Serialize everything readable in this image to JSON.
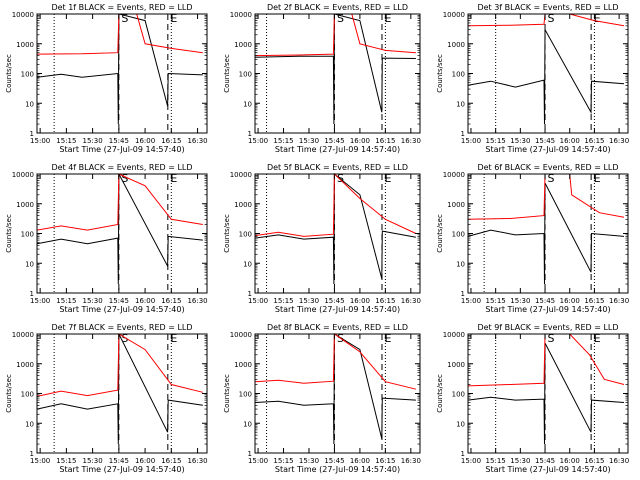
{
  "figure": {
    "ylabel": "Counts/sec",
    "xlabel": "Start Time (27-Jul-09 14:57:40)",
    "x_ticks": [
      "15:00",
      "15:15",
      "15:30",
      "15:45",
      "16:00",
      "16:15",
      "16:30"
    ],
    "y_ticks": [
      "1",
      "10",
      "100",
      "1000",
      "10000"
    ],
    "marker_S": "S",
    "marker_E": "E",
    "colors": {
      "events": "#000000",
      "lld": "#ff0000",
      "frame": "#000000"
    }
  },
  "chart_data": [
    {
      "type": "line",
      "title": "Det 1f BLACK = Events, RED = LLD",
      "xlabel": "Start Time (27-Jul-09 14:57:40)",
      "ylabel": "Counts/sec",
      "ylim": [
        1,
        10000
      ],
      "y_scale": "log",
      "markers": {
        "dotted": [
          "15:08",
          "16:15"
        ],
        "dashed": [
          "15:45",
          "16:13"
        ],
        "S": "15:45",
        "E": "16:13"
      },
      "series": [
        {
          "name": "Events",
          "color": "black",
          "values": [
            [
              14.97,
              75
            ],
            [
              15.2,
              95
            ],
            [
              15.4,
              75
            ],
            [
              15.74,
              100
            ],
            [
              15.745,
              2
            ],
            [
              15.75,
              10000
            ],
            [
              16.0,
              6000
            ],
            [
              16.215,
              8
            ],
            [
              16.22,
              100
            ],
            [
              16.55,
              90
            ]
          ]
        },
        {
          "name": "LLD",
          "color": "red",
          "values": [
            [
              14.97,
              450
            ],
            [
              15.4,
              460
            ],
            [
              15.74,
              500
            ],
            [
              15.75,
              10000
            ],
            [
              15.92,
              10000
            ],
            [
              16.0,
              1000
            ],
            [
              16.25,
              700
            ],
            [
              16.55,
              500
            ]
          ]
        }
      ]
    },
    {
      "type": "line",
      "title": "Det 2f BLACK = Events, RED = LLD",
      "xlabel": "Start Time (27-Jul-09 14:57:40)",
      "ylabel": "Counts/sec",
      "ylim": [
        1,
        10000
      ],
      "y_scale": "log",
      "markers": {
        "dotted": [
          "15:05",
          "16:15"
        ],
        "dashed": [
          "15:45",
          "16:13"
        ],
        "S": "15:45",
        "E": "16:13"
      },
      "series": [
        {
          "name": "Events",
          "color": "black",
          "values": [
            [
              14.97,
              350
            ],
            [
              15.4,
              380
            ],
            [
              15.74,
              380
            ],
            [
              15.745,
              2
            ],
            [
              15.75,
              10000
            ],
            [
              16.0,
              6000
            ],
            [
              16.215,
              5
            ],
            [
              16.22,
              330
            ],
            [
              16.55,
              320
            ]
          ]
        },
        {
          "name": "LLD",
          "color": "red",
          "values": [
            [
              14.97,
              400
            ],
            [
              15.4,
              420
            ],
            [
              15.74,
              450
            ],
            [
              15.75,
              10000
            ],
            [
              15.92,
              10000
            ],
            [
              16.0,
              1000
            ],
            [
              16.25,
              600
            ],
            [
              16.55,
              500
            ]
          ]
        }
      ]
    },
    {
      "type": "line",
      "title": "Det 3f BLACK = Events, RED = LLD",
      "xlabel": "Start Time (27-Jul-09 14:57:40)",
      "ylabel": "Counts/sec",
      "ylim": [
        1,
        10000
      ],
      "y_scale": "log",
      "markers": {
        "dotted": [
          "15:15",
          "16:15"
        ],
        "dashed": [
          "15:45",
          "16:13"
        ],
        "S": "15:45",
        "E": "16:13"
      },
      "series": [
        {
          "name": "Events",
          "color": "black",
          "values": [
            [
              14.97,
              40
            ],
            [
              15.2,
              55
            ],
            [
              15.45,
              35
            ],
            [
              15.74,
              60
            ],
            [
              15.745,
              2
            ],
            [
              15.75,
              3000
            ],
            [
              16.215,
              5
            ],
            [
              16.22,
              55
            ],
            [
              16.55,
              45
            ]
          ]
        },
        {
          "name": "LLD",
          "color": "red",
          "values": [
            [
              14.97,
              4000
            ],
            [
              15.4,
              4200
            ],
            [
              15.74,
              4500
            ],
            [
              15.75,
              10000
            ],
            [
              16.0,
              10000
            ],
            [
              16.25,
              6000
            ],
            [
              16.55,
              4000
            ]
          ]
        }
      ]
    },
    {
      "type": "line",
      "title": "Det 4f BLACK = Events, RED = LLD",
      "xlabel": "Start Time (27-Jul-09 14:57:40)",
      "ylabel": "Counts/sec",
      "ylim": [
        1,
        10000
      ],
      "y_scale": "log",
      "markers": {
        "dotted": [
          "15:08",
          "16:15"
        ],
        "dashed": [
          "15:45",
          "16:13"
        ],
        "S": "15:45",
        "E": "16:13"
      },
      "series": [
        {
          "name": "Events",
          "color": "black",
          "values": [
            [
              14.97,
              45
            ],
            [
              15.2,
              65
            ],
            [
              15.45,
              45
            ],
            [
              15.74,
              70
            ],
            [
              15.745,
              2
            ],
            [
              15.75,
              10000
            ],
            [
              16.215,
              8
            ],
            [
              16.22,
              80
            ],
            [
              16.55,
              60
            ]
          ]
        },
        {
          "name": "LLD",
          "color": "red",
          "values": [
            [
              14.97,
              130
            ],
            [
              15.2,
              180
            ],
            [
              15.45,
              130
            ],
            [
              15.74,
              200
            ],
            [
              15.75,
              10000
            ],
            [
              16.0,
              4000
            ],
            [
              16.25,
              300
            ],
            [
              16.55,
              200
            ]
          ]
        }
      ]
    },
    {
      "type": "line",
      "title": "Det 5f BLACK = Events, RED = LLD",
      "xlabel": "Start Time (27-Jul-09 14:57:40)",
      "ylabel": "Counts/sec",
      "ylim": [
        1,
        10000
      ],
      "y_scale": "log",
      "markers": {
        "dotted": [
          "15:05",
          "16:15"
        ],
        "dashed": [
          "15:45",
          "16:13"
        ],
        "S": "15:45",
        "E": "16:13"
      },
      "series": [
        {
          "name": "Events",
          "color": "black",
          "values": [
            [
              14.97,
              70
            ],
            [
              15.2,
              90
            ],
            [
              15.45,
              65
            ],
            [
              15.74,
              75
            ],
            [
              15.745,
              2
            ],
            [
              15.75,
              10000
            ],
            [
              16.0,
              2000
            ],
            [
              16.215,
              3
            ],
            [
              16.22,
              120
            ],
            [
              16.55,
              75
            ]
          ]
        },
        {
          "name": "LLD",
          "color": "red",
          "values": [
            [
              14.97,
              85
            ],
            [
              15.2,
              110
            ],
            [
              15.45,
              80
            ],
            [
              15.74,
              95
            ],
            [
              15.75,
              10000
            ],
            [
              16.0,
              1500
            ],
            [
              16.25,
              300
            ],
            [
              16.55,
              100
            ]
          ]
        }
      ]
    },
    {
      "type": "line",
      "title": "Det 6f BLACK = Events, RED = LLD",
      "xlabel": "Start Time (27-Jul-09 14:57:40)",
      "ylabel": "Counts/sec",
      "ylim": [
        1,
        10000
      ],
      "y_scale": "log",
      "markers": {
        "dotted": [
          "15:08",
          "16:15"
        ],
        "dashed": [
          "15:45",
          "16:13"
        ],
        "S": "15:45",
        "E": "16:13"
      },
      "series": [
        {
          "name": "Events",
          "color": "black",
          "values": [
            [
              14.97,
              80
            ],
            [
              15.2,
              130
            ],
            [
              15.45,
              90
            ],
            [
              15.74,
              100
            ],
            [
              15.745,
              2
            ],
            [
              15.75,
              5000
            ],
            [
              16.215,
              5
            ],
            [
              16.22,
              100
            ],
            [
              16.55,
              80
            ]
          ]
        },
        {
          "name": "LLD",
          "color": "red",
          "values": [
            [
              14.97,
              300
            ],
            [
              15.4,
              320
            ],
            [
              15.74,
              400
            ],
            [
              15.75,
              10000
            ],
            [
              16.0,
              10000
            ],
            [
              16.02,
              2000
            ],
            [
              16.3,
              500
            ],
            [
              16.55,
              350
            ]
          ]
        }
      ]
    },
    {
      "type": "line",
      "title": "Det 7f BLACK = Events, RED = LLD",
      "xlabel": "Start Time (27-Jul-09 14:57:40)",
      "ylabel": "Counts/sec",
      "ylim": [
        1,
        10000
      ],
      "y_scale": "log",
      "markers": {
        "dotted": [
          "15:08",
          "16:15"
        ],
        "dashed": [
          "15:45",
          "16:13"
        ],
        "S": "15:45",
        "E": "16:13"
      },
      "series": [
        {
          "name": "Events",
          "color": "black",
          "values": [
            [
              14.97,
              30
            ],
            [
              15.2,
              45
            ],
            [
              15.45,
              30
            ],
            [
              15.74,
              45
            ],
            [
              15.745,
              2
            ],
            [
              15.75,
              10000
            ],
            [
              16.215,
              5
            ],
            [
              16.22,
              60
            ],
            [
              16.55,
              40
            ]
          ]
        },
        {
          "name": "LLD",
          "color": "red",
          "values": [
            [
              14.97,
              80
            ],
            [
              15.2,
              120
            ],
            [
              15.45,
              85
            ],
            [
              15.74,
              130
            ],
            [
              15.75,
              10000
            ],
            [
              16.0,
              3000
            ],
            [
              16.25,
              200
            ],
            [
              16.55,
              110
            ]
          ]
        }
      ]
    },
    {
      "type": "line",
      "title": "Det 8f BLACK = Events, RED = LLD",
      "xlabel": "Start Time (27-Jul-09 14:57:40)",
      "ylabel": "Counts/sec",
      "ylim": [
        1,
        10000
      ],
      "y_scale": "log",
      "markers": {
        "dotted": [
          "15:05",
          "16:15"
        ],
        "dashed": [
          "15:45",
          "16:13"
        ],
        "S": "15:45",
        "E": "16:13"
      },
      "series": [
        {
          "name": "Events",
          "color": "black",
          "values": [
            [
              14.97,
              50
            ],
            [
              15.2,
              55
            ],
            [
              15.45,
              40
            ],
            [
              15.74,
              45
            ],
            [
              15.745,
              2
            ],
            [
              15.75,
              10000
            ],
            [
              16.0,
              3000
            ],
            [
              16.215,
              3
            ],
            [
              16.22,
              70
            ],
            [
              16.55,
              60
            ]
          ]
        },
        {
          "name": "LLD",
          "color": "red",
          "values": [
            [
              14.97,
              250
            ],
            [
              15.2,
              280
            ],
            [
              15.45,
              220
            ],
            [
              15.74,
              260
            ],
            [
              15.75,
              10000
            ],
            [
              16.0,
              2500
            ],
            [
              16.25,
              250
            ],
            [
              16.55,
              140
            ]
          ]
        }
      ]
    },
    {
      "type": "line",
      "title": "Det 9f BLACK = Events, RED = LLD",
      "xlabel": "Start Time (27-Jul-09 14:57:40)",
      "ylabel": "Counts/sec",
      "ylim": [
        1,
        10000
      ],
      "y_scale": "log",
      "markers": {
        "dotted": [
          "15:15",
          "16:15"
        ],
        "dashed": [
          "15:45",
          "16:13"
        ],
        "S": "15:45",
        "E": "16:13"
      },
      "series": [
        {
          "name": "Events",
          "color": "black",
          "values": [
            [
              14.97,
              60
            ],
            [
              15.2,
              75
            ],
            [
              15.45,
              60
            ],
            [
              15.74,
              65
            ],
            [
              15.745,
              2
            ],
            [
              15.75,
              5000
            ],
            [
              16.215,
              5
            ],
            [
              16.22,
              60
            ],
            [
              16.55,
              50
            ]
          ]
        },
        {
          "name": "LLD",
          "color": "red",
          "values": [
            [
              14.97,
              180
            ],
            [
              15.4,
              200
            ],
            [
              15.74,
              220
            ],
            [
              15.75,
              10000
            ],
            [
              16.0,
              10000
            ],
            [
              16.2,
              2000
            ],
            [
              16.35,
              300
            ],
            [
              16.55,
              200
            ]
          ]
        }
      ]
    }
  ]
}
